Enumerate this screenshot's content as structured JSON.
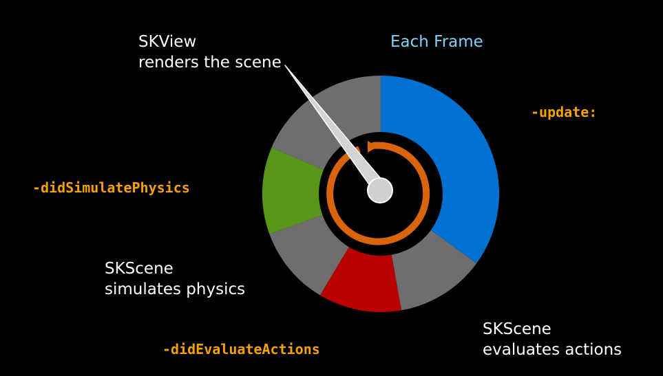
{
  "heading": "Each Frame",
  "labels": {
    "renders_line1": "SKView",
    "renders_line2": "renders the scene",
    "physics_line1": "SKScene",
    "physics_line2": "simulates physics",
    "actions_line1": "SKScene",
    "actions_line2": "evaluates actions"
  },
  "methods": {
    "update": "-update:",
    "did_simulate_physics": "-didSimulatePhysics",
    "did_evaluate_actions": "-didEvaluateActions"
  },
  "colors": {
    "update_segment": "#0071d0",
    "actions_segment": "#b80000",
    "physics_segment": "#58961a",
    "render_segment": "#6e6e6e",
    "cycle_arrow": "#d9640c",
    "method_text": "#f5a200",
    "heading_text": "#7fd3f7"
  }
}
